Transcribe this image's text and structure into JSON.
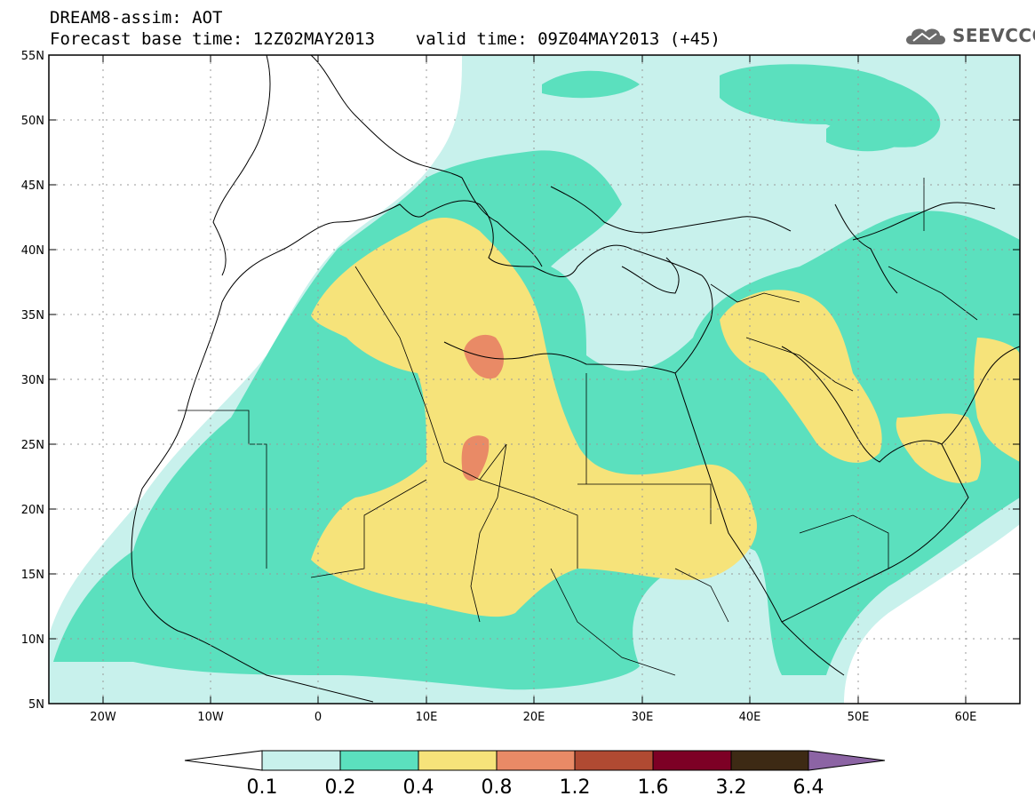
{
  "header": {
    "title_line1": "DREAM8-assim: AOT",
    "title_line2": "Forecast base time: 12Z02MAY2013    valid time: 09Z04MAY2013 (+45)",
    "logo_text": "SEEVCCC"
  },
  "map": {
    "lat_labels": [
      "55N",
      "50N",
      "45N",
      "40N",
      "35N",
      "30N",
      "25N",
      "20N",
      "15N",
      "10N",
      "5N"
    ],
    "lon_labels": [
      "20W",
      "10W",
      "0",
      "10E",
      "20E",
      "30E",
      "40E",
      "50E",
      "60E"
    ]
  },
  "legend": {
    "levels": [
      "0.1",
      "0.2",
      "0.4",
      "0.8",
      "1.2",
      "1.6",
      "3.2",
      "6.4"
    ],
    "colors": [
      "#ffffff",
      "#c8f1ec",
      "#5be0be",
      "#f6e37a",
      "#e98a66",
      "#b04a32",
      "#7d0025",
      "#3d2a14",
      "#8c64a4"
    ]
  }
}
